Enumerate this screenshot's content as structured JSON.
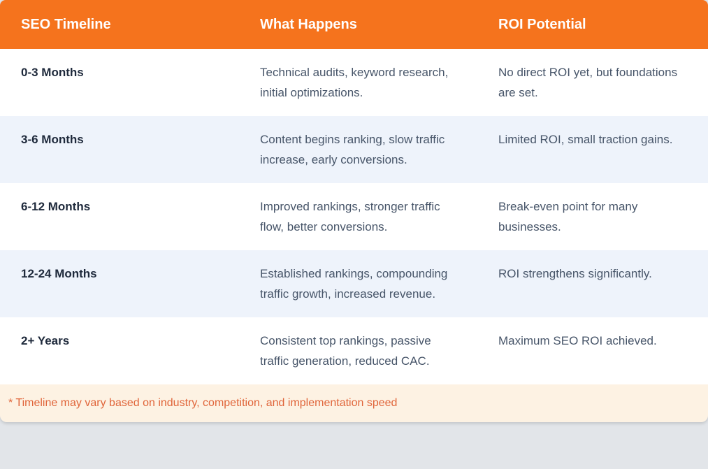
{
  "chart_data": {
    "type": "table",
    "columns": [
      "SEO Timeline",
      "What Happens",
      "ROI Potential"
    ],
    "rows": [
      {
        "timeline": "0-3 Months",
        "what_happens": "Technical audits, keyword research, initial optimizations.",
        "roi_potential": "No direct ROI yet, but foundations are set."
      },
      {
        "timeline": "3-6 Months",
        "what_happens": "Content begins ranking, slow traffic increase, early conversions.",
        "roi_potential": "Limited ROI, small traction gains."
      },
      {
        "timeline": "6-12 Months",
        "what_happens": "Improved rankings, stronger traffic flow, better conversions.",
        "roi_potential": "Break-even point for many businesses."
      },
      {
        "timeline": "12-24 Months",
        "what_happens": "Established rankings, compounding traffic growth, increased revenue.",
        "roi_potential": "ROI strengthens significantly."
      },
      {
        "timeline": "2+ Years",
        "what_happens": "Consistent top rankings, passive traffic generation, reduced CAC.",
        "roi_potential": "Maximum SEO ROI achieved."
      }
    ],
    "footnote": "* Timeline may vary based on industry, competition, and implementation speed",
    "layout": {
      "grid": "off",
      "header_position": "top",
      "row_striping": "alternate white / light-blue"
    }
  },
  "colors": {
    "header_bg": "#f5731d",
    "header_text": "#ffffff",
    "row_bg": "#ffffff",
    "row_alt_bg": "#eef3fb",
    "timeline_text": "#1e293b",
    "body_text": "#475569",
    "footnote_bg": "#fdf2e3",
    "footnote_text": "#e0653a",
    "page_bg": "#e2e5e9"
  }
}
